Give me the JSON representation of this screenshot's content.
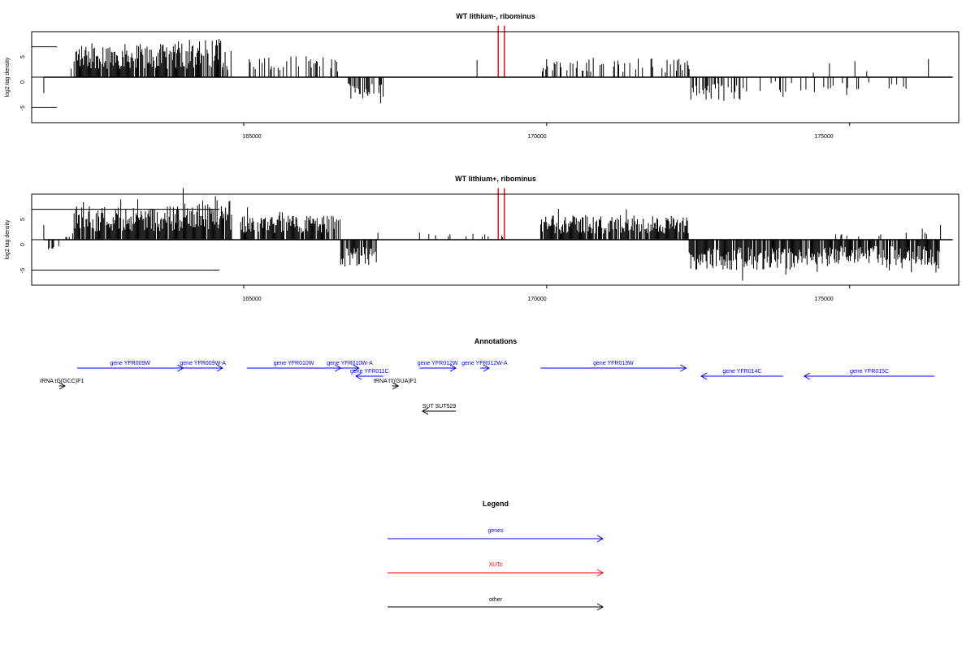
{
  "chart_data": [
    {
      "type": "bar",
      "title": "WT lithium-, ribominus",
      "xlabel": "",
      "ylabel": "log2 tag density",
      "xlim": [
        161500,
        176800
      ],
      "ylim": [
        -7.5,
        7.5
      ],
      "x_ticks": [
        165000,
        170000,
        175000
      ],
      "y_ticks": [
        -5,
        0,
        5
      ],
      "series": [
        {
          "color": "#000000",
          "segments": [
            {
              "start": 161700,
              "end": 161700,
              "amp": 2.6,
              "density": 1,
              "sign": -1
            },
            {
              "start": 162150,
              "end": 162150,
              "amp": 1.4,
              "density": 1,
              "sign": 1
            },
            {
              "start": 162200,
              "end": 164200,
              "amp": 5.5,
              "density": 0.9,
              "sign": 1
            },
            {
              "start": 164200,
              "end": 164650,
              "amp": 6.5,
              "density": 0.8,
              "sign": 1
            },
            {
              "start": 164650,
              "end": 164800,
              "amp": 3.5,
              "density": 0.5,
              "sign": 1
            },
            {
              "start": 165050,
              "end": 166600,
              "amp": 3.5,
              "density": 0.35,
              "sign": 1
            },
            {
              "start": 166600,
              "end": 167300,
              "amp": 4.0,
              "density": 0.5,
              "sign": -1
            },
            {
              "start": 168850,
              "end": 168850,
              "amp": 2.8,
              "density": 1,
              "sign": 1
            },
            {
              "start": 169900,
              "end": 172350,
              "amp": 3.2,
              "density": 0.3,
              "sign": 1
            },
            {
              "start": 172350,
              "end": 173200,
              "amp": 3.8,
              "density": 0.45,
              "sign": -1
            },
            {
              "start": 173200,
              "end": 176300,
              "amp": 2.5,
              "density": 0.12,
              "sign": -1
            },
            {
              "start": 174400,
              "end": 175300,
              "amp": 2.8,
              "density": 0.06,
              "sign": 1
            },
            {
              "start": 176300,
              "end": 176300,
              "amp": 3.0,
              "density": 1,
              "sign": 1
            }
          ]
        },
        {
          "color": "#ff0000",
          "segments": [
            {
              "start": 169200,
              "end": 169200,
              "amp": 8.5,
              "density": 1,
              "sign": 1
            },
            {
              "start": 169300,
              "end": 169300,
              "amp": 8.5,
              "density": 1,
              "sign": 1
            }
          ]
        }
      ]
    },
    {
      "type": "bar",
      "title": "WT lithium+, ribominus",
      "xlabel": "",
      "ylabel": "log2 tag density",
      "xlim": [
        161500,
        176800
      ],
      "ylim": [
        -7.5,
        7.5
      ],
      "x_ticks": [
        165000,
        170000,
        175000
      ],
      "y_ticks": [
        -5,
        0,
        5
      ],
      "series": [
        {
          "color": "#000000",
          "segments": [
            {
              "start": 161700,
              "end": 161700,
              "amp": 2.4,
              "density": 1,
              "sign": 1
            },
            {
              "start": 161750,
              "end": 161950,
              "amp": 1.8,
              "density": 0.3,
              "sign": -1
            },
            {
              "start": 162050,
              "end": 162200,
              "amp": 1.2,
              "density": 0.2,
              "sign": 1
            },
            {
              "start": 162200,
              "end": 164000,
              "amp": 5.5,
              "density": 0.95,
              "sign": 1
            },
            {
              "start": 164000,
              "end": 164800,
              "amp": 6.5,
              "density": 0.95,
              "sign": 1
            },
            {
              "start": 164950,
              "end": 166600,
              "amp": 4.0,
              "density": 0.9,
              "sign": 1
            },
            {
              "start": 166600,
              "end": 167200,
              "amp": 4.5,
              "density": 0.8,
              "sign": -1
            },
            {
              "start": 167200,
              "end": 169900,
              "amp": 1.2,
              "density": 0.06,
              "sign": 1
            },
            {
              "start": 169900,
              "end": 172350,
              "amp": 4.0,
              "density": 0.9,
              "sign": 1
            },
            {
              "start": 172350,
              "end": 174100,
              "amp": 5.0,
              "density": 0.9,
              "sign": -1
            },
            {
              "start": 174100,
              "end": 176500,
              "amp": 4.2,
              "density": 0.85,
              "sign": -1
            },
            {
              "start": 174700,
              "end": 176300,
              "amp": 1.5,
              "density": 0.1,
              "sign": 1
            },
            {
              "start": 176500,
              "end": 176500,
              "amp": 2.4,
              "density": 1,
              "sign": 1
            }
          ]
        },
        {
          "color": "#ff0000",
          "segments": [
            {
              "start": 169200,
              "end": 169200,
              "amp": 8.5,
              "density": 1,
              "sign": 1
            },
            {
              "start": 169300,
              "end": 169300,
              "amp": 8.5,
              "density": 1,
              "sign": 1
            }
          ]
        }
      ]
    }
  ],
  "annotations": {
    "title": "Annotations",
    "features": [
      {
        "label": "tRNA tG(GCC)F1",
        "color": "#000000",
        "start": 161950,
        "end": 162050,
        "strand": "+",
        "row": 2
      },
      {
        "label": "gene YFR009W",
        "color": "#0000ff",
        "start": 162250,
        "end": 164000,
        "strand": "+",
        "row": 0
      },
      {
        "label": "gene YFR009W-A",
        "color": "#0000ff",
        "start": 164000,
        "end": 164650,
        "strand": "+",
        "row": 0
      },
      {
        "label": "gene YFR010W",
        "color": "#0000ff",
        "start": 165050,
        "end": 166600,
        "strand": "+",
        "row": 0
      },
      {
        "label": "gene YFR010W-A",
        "color": "#0000ff",
        "start": 166600,
        "end": 166900,
        "strand": "+",
        "row": 0
      },
      {
        "label": "gene YFR011C",
        "color": "#0000ff",
        "start": 166850,
        "end": 167300,
        "strand": "-",
        "row": 1
      },
      {
        "label": "tRNA tY(GUA)F1",
        "color": "#000000",
        "start": 167450,
        "end": 167550,
        "strand": "+",
        "row": 2
      },
      {
        "label": "gene YFR012W",
        "color": "#0000ff",
        "start": 167900,
        "end": 168500,
        "strand": "+",
        "row": 0
      },
      {
        "label": "gene YFR012W-A",
        "color": "#0000ff",
        "start": 168900,
        "end": 169050,
        "strand": "+",
        "row": 0
      },
      {
        "label": "gene YFR013W",
        "color": "#0000ff",
        "start": 169900,
        "end": 172300,
        "strand": "+",
        "row": 0
      },
      {
        "label": "gene YFR014C",
        "color": "#0000ff",
        "start": 172550,
        "end": 173900,
        "strand": "-",
        "row": 1
      },
      {
        "label": "gene YFR015C",
        "color": "#0000ff",
        "start": 174250,
        "end": 176400,
        "strand": "-",
        "row": 1
      },
      {
        "label": "SUT SUT529",
        "color": "#000000",
        "start": 167950,
        "end": 168500,
        "strand": "-",
        "row": 3
      }
    ]
  },
  "legend": {
    "title": "Legend",
    "items": [
      {
        "label": "genes",
        "color": "#0000ff"
      },
      {
        "label": "XUTs",
        "color": "#ff0000"
      },
      {
        "label": "other",
        "color": "#000000"
      }
    ]
  }
}
